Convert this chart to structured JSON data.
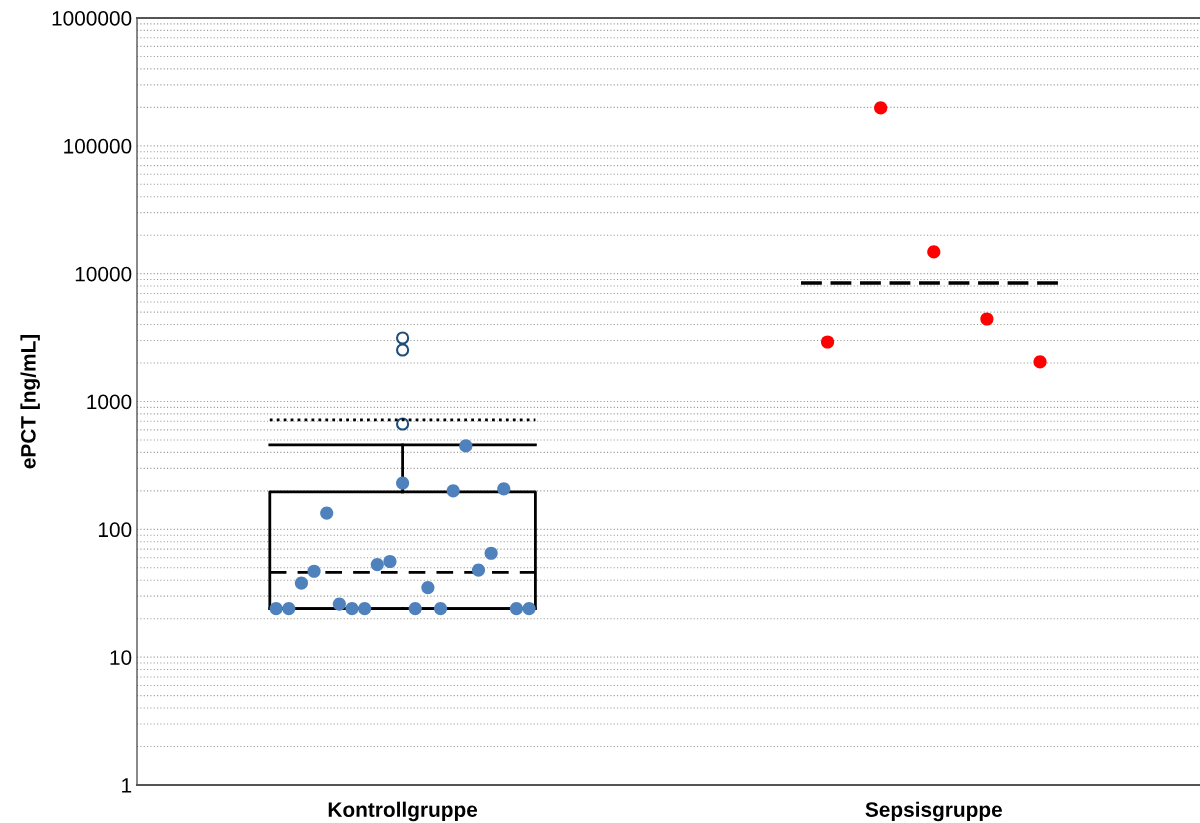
{
  "chart_data": {
    "type": "box",
    "ylabel": "ePCT [ng/mL]",
    "categories": [
      "Kontrollgruppe",
      "Sepsisgruppe"
    ],
    "log": "y",
    "ylim": [
      1,
      1000000
    ],
    "yticks": [
      1,
      10,
      100,
      1000,
      10000,
      100000,
      1000000
    ],
    "grid": "y",
    "boxes": [
      {
        "low": 24,
        "q1": 24,
        "median": 46,
        "q3": 196,
        "high": 457,
        "mean": 717,
        "outliers": [
          667,
          2530,
          3140
        ]
      },
      null
    ],
    "ref_lines": [
      {
        "axis": "y",
        "value": 8450,
        "color": "#000000",
        "line_style": "dashed"
      }
    ],
    "series": [
      {
        "type": "scatter",
        "color": "#4f81bd",
        "x": [
          "Kontrollgruppe",
          "Kontrollgruppe",
          "Kontrollgruppe",
          "Kontrollgruppe",
          "Kontrollgruppe",
          "Kontrollgruppe",
          "Kontrollgruppe",
          "Kontrollgruppe",
          "Kontrollgruppe",
          "Kontrollgruppe",
          "Kontrollgruppe",
          "Kontrollgruppe",
          "Kontrollgruppe",
          "Kontrollgruppe",
          "Kontrollgruppe",
          "Kontrollgruppe",
          "Kontrollgruppe",
          "Kontrollgruppe",
          "Kontrollgruppe",
          "Kontrollgruppe",
          "Kontrollgruppe"
        ],
        "values": [
          24,
          24,
          38,
          47,
          134,
          26,
          24,
          24,
          53,
          56,
          230,
          24,
          35,
          24,
          200,
          449,
          48,
          65,
          207,
          24,
          24
        ],
        "marker": "circle"
      },
      {
        "type": "scatter",
        "color": "#ff0000",
        "x": [
          "Sepsisgruppe",
          "Sepsisgruppe",
          "Sepsisgruppe",
          "Sepsisgruppe",
          "Sepsisgruppe"
        ],
        "values": [
          2920,
          198000,
          14800,
          4420,
          2040
        ],
        "marker": "circle"
      }
    ]
  }
}
